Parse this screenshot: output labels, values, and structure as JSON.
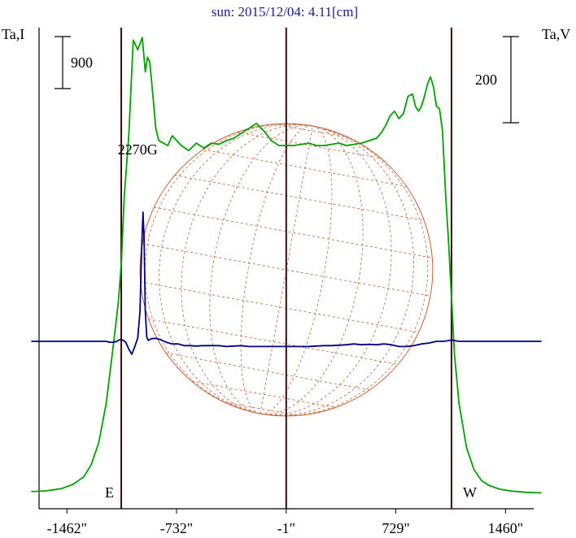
{
  "chart_data": {
    "type": "line",
    "title": "sun: 2015/12/04: 4.11[cm]",
    "left_axis_label": "Ta,I",
    "right_axis_label": "Ta,V",
    "left_scale_bar": "900",
    "right_scale_bar": "200",
    "x_tick_labels": [
      "-1462\"",
      "-732\"",
      "-1\"",
      "729\"",
      "1460\""
    ],
    "x_ticks": [
      -1462,
      -732,
      -1,
      729,
      1460
    ],
    "xlim": [
      -1700,
      1700
    ],
    "limb_markers": [
      {
        "x": -1100,
        "label": "E"
      },
      {
        "x": -1,
        "label": ""
      },
      {
        "x": 1100,
        "label": "W"
      }
    ],
    "annotation": {
      "text": "2270G",
      "x": -950
    },
    "grid": false,
    "disk": {
      "radius": 975,
      "grid_color": "#c06030"
    },
    "colors": {
      "stokes_I": "#00a000",
      "stokes_V": "#000080",
      "limb_lines": "#3a0a0a",
      "title": "#1c1c8c"
    },
    "series": [
      {
        "key": "I",
        "color": "#00a000",
        "x": [
          -1700,
          -1600,
          -1500,
          -1420,
          -1350,
          -1300,
          -1250,
          -1200,
          -1150,
          -1120,
          -1100,
          -1080,
          -1050,
          -1020,
          -990,
          -960,
          -940,
          -925,
          -910,
          -890,
          -870,
          -850,
          -820,
          -790,
          -760,
          -730,
          -700,
          -650,
          -600,
          -550,
          -500,
          -450,
          -400,
          -350,
          -300,
          -250,
          -200,
          -150,
          -100,
          -50,
          0,
          50,
          100,
          150,
          200,
          250,
          300,
          350,
          400,
          450,
          500,
          550,
          600,
          630,
          660,
          690,
          720,
          750,
          780,
          810,
          840,
          860,
          880,
          900,
          920,
          940,
          960,
          980,
          1000,
          1020,
          1040,
          1060,
          1080,
          1100,
          1120,
          1150,
          1200,
          1250,
          1300,
          1350,
          1420,
          1500,
          1600,
          1700
        ],
        "values": [
          30,
          33,
          42,
          60,
          90,
          140,
          230,
          390,
          640,
          800,
          960,
          1230,
          1480,
          1870,
          1830,
          1880,
          1740,
          1800,
          1780,
          1650,
          1510,
          1460,
          1450,
          1440,
          1480,
          1460,
          1440,
          1420,
          1450,
          1430,
          1450,
          1445,
          1460,
          1470,
          1490,
          1510,
          1530,
          1500,
          1460,
          1440,
          1440,
          1440,
          1445,
          1450,
          1440,
          1440,
          1445,
          1450,
          1440,
          1445,
          1450,
          1460,
          1470,
          1490,
          1520,
          1560,
          1580,
          1550,
          1570,
          1640,
          1650,
          1600,
          1580,
          1600,
          1640,
          1690,
          1720,
          1680,
          1600,
          1590,
          1500,
          1250,
          1050,
          820,
          590,
          390,
          210,
          120,
          75,
          55,
          40,
          32,
          27,
          25
        ]
      },
      {
        "key": "V",
        "color": "#000080",
        "x": [
          -1700,
          -1400,
          -1200,
          -1180,
          -1150,
          -1130,
          -1110,
          -1090,
          -1070,
          -1050,
          -1030,
          -1010,
          -990,
          -975,
          -965,
          -955,
          -948,
          -940,
          -930,
          -920,
          -900,
          -870,
          -840,
          -800,
          -760,
          -720,
          -680,
          -640,
          -600,
          -560,
          -500,
          -450,
          -400,
          -350,
          -300,
          -250,
          -200,
          -150,
          -100,
          -50,
          0,
          50,
          100,
          150,
          200,
          250,
          300,
          350,
          400,
          450,
          500,
          550,
          600,
          650,
          700,
          750,
          800,
          850,
          900,
          950,
          1000,
          1050,
          1100,
          1150,
          1200,
          1400,
          1700
        ],
        "values": [
          0,
          0,
          0,
          -2,
          -2,
          0,
          4,
          3,
          -2,
          -18,
          -30,
          -12,
          8,
          70,
          210,
          300,
          240,
          70,
          10,
          2,
          6,
          7,
          4,
          -2,
          -6,
          -6,
          -10,
          -10,
          -11,
          -10,
          -10,
          -10,
          -12,
          -11,
          -10,
          -12,
          -12,
          -12,
          -12,
          -12,
          -12,
          -12,
          -12,
          -12,
          -11,
          -10,
          -10,
          -9,
          -8,
          -6,
          -8,
          -7,
          -8,
          -6,
          -8,
          -12,
          -12,
          -10,
          -6,
          -4,
          0,
          0,
          3,
          0,
          0,
          0,
          0
        ]
      }
    ]
  }
}
